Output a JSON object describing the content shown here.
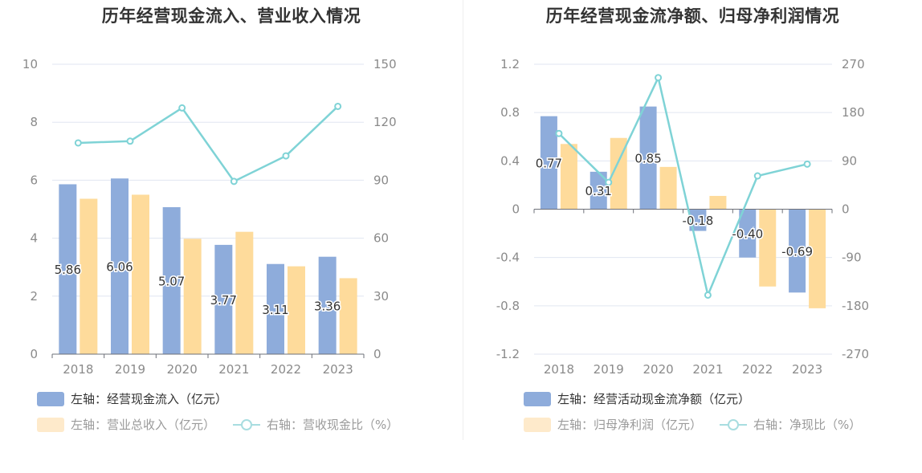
{
  "colors": {
    "bar_blue": "#8eacdb",
    "bar_yellow": "#fedb9b",
    "line_teal": "#7fd3d6",
    "grid": "#e0e6f1",
    "axis_text": "#8a8a8a"
  },
  "left": {
    "title": "历年经营现金流入、营业收入情况",
    "legend": [
      {
        "label": "左轴：经营现金流入（亿元）",
        "type": "bar"
      },
      {
        "label": "左轴：营业总收入（亿元）",
        "type": "bar"
      },
      {
        "label": "右轴：营收现金比（%）",
        "type": "line"
      }
    ]
  },
  "right": {
    "title": "历年经营现金流净额、归母净利润情况",
    "legend": [
      {
        "label": "左轴：经营活动现金流净额（亿元）",
        "type": "bar"
      },
      {
        "label": "左轴：归母净利润（亿元）",
        "type": "bar"
      },
      {
        "label": "右轴：净现比（%）",
        "type": "line"
      }
    ]
  },
  "chart_data": [
    {
      "type": "bar",
      "title": "历年经营现金流入、营业收入情况",
      "categories": [
        "2018",
        "2019",
        "2020",
        "2021",
        "2022",
        "2023"
      ],
      "left_axis": {
        "ticks": [
          "0",
          "2",
          "4",
          "6",
          "8",
          "10"
        ],
        "range": [
          0,
          10
        ]
      },
      "right_axis": {
        "ticks": [
          "0",
          "30",
          "60",
          "90",
          "120",
          "150"
        ],
        "range": [
          0,
          150
        ]
      },
      "series": [
        {
          "name": "左轴：经营现金流入（亿元）",
          "type": "bar",
          "axis": "left",
          "values": [
            5.86,
            6.06,
            5.07,
            3.77,
            3.11,
            3.36
          ],
          "labels": [
            "5.86",
            "6.06",
            "5.07",
            "3.77",
            "3.11",
            "3.36"
          ]
        },
        {
          "name": "左轴：营业总收入（亿元）",
          "type": "bar",
          "axis": "left",
          "values": [
            5.36,
            5.5,
            3.98,
            4.22,
            3.03,
            2.62
          ]
        },
        {
          "name": "右轴：营收现金比（%）",
          "type": "line",
          "axis": "right",
          "values": [
            109.3,
            110.2,
            127.4,
            89.4,
            102.6,
            128.2
          ]
        }
      ],
      "grid": true,
      "legend_position": "bottom"
    },
    {
      "type": "bar",
      "title": "历年经营现金流净额、归母净利润情况",
      "categories": [
        "2018",
        "2019",
        "2020",
        "2021",
        "2022",
        "2023"
      ],
      "left_axis": {
        "ticks": [
          "-1.2",
          "-0.8",
          "-0.4",
          "0",
          "0.4",
          "0.8",
          "1.2"
        ],
        "range": [
          -1.2,
          1.2
        ]
      },
      "right_axis": {
        "ticks": [
          "-270",
          "-180",
          "-90",
          "0",
          "90",
          "180",
          "270"
        ],
        "range": [
          -270,
          270
        ]
      },
      "series": [
        {
          "name": "左轴：经营活动现金流净额（亿元）",
          "type": "bar",
          "axis": "left",
          "values": [
            0.77,
            0.31,
            0.85,
            -0.18,
            -0.4,
            -0.69
          ],
          "labels": [
            "0.77",
            "0.31",
            "0.85",
            "-0.18",
            "-0.40",
            "-0.69"
          ]
        },
        {
          "name": "左轴：归母净利润（亿元）",
          "type": "bar",
          "axis": "left",
          "values": [
            0.54,
            0.59,
            0.35,
            0.11,
            -0.64,
            -0.82
          ]
        },
        {
          "name": "右轴：净现比（%）",
          "type": "line",
          "axis": "right",
          "values": [
            141,
            50,
            245,
            -160,
            62,
            84
          ]
        }
      ],
      "grid": true,
      "legend_position": "bottom"
    }
  ]
}
